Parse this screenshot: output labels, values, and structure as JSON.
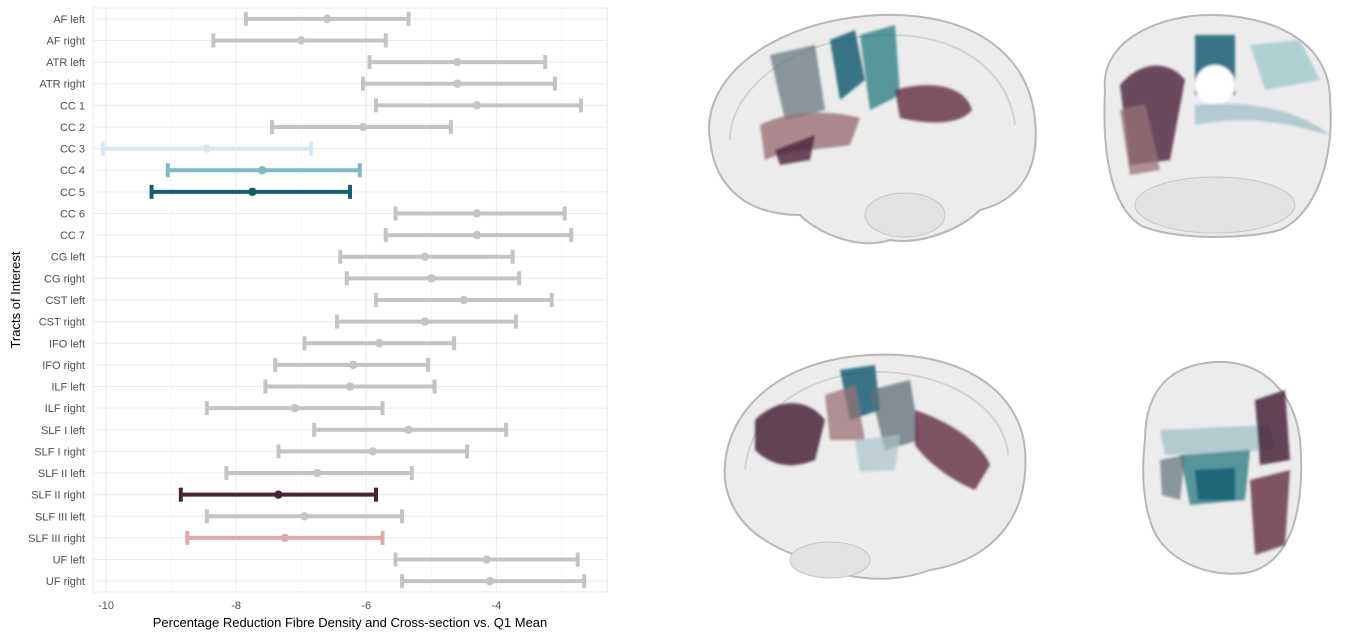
{
  "chart_data": {
    "type": "errorbar",
    "xlabel": "Percentage Reduction Fibre Density and Cross-section vs. Q1 Mean",
    "ylabel": "Tracts of Interest",
    "xlim": [
      -10.2,
      -2.3
    ],
    "xticks": [
      -10,
      -8,
      -6,
      -4
    ],
    "grid": true,
    "default_color": "#c4c4c4",
    "rows": [
      {
        "label": "AF left",
        "mean": -6.6,
        "lo": -7.85,
        "hi": -5.35,
        "color": "#c4c4c4"
      },
      {
        "label": "AF right",
        "mean": -7.0,
        "lo": -8.35,
        "hi": -5.7,
        "color": "#c4c4c4"
      },
      {
        "label": "ATR left",
        "mean": -4.6,
        "lo": -5.95,
        "hi": -3.25,
        "color": "#c4c4c4"
      },
      {
        "label": "ATR right",
        "mean": -4.6,
        "lo": -6.05,
        "hi": -3.1,
        "color": "#c4c4c4"
      },
      {
        "label": "CC 1",
        "mean": -4.3,
        "lo": -5.85,
        "hi": -2.7,
        "color": "#c4c4c4"
      },
      {
        "label": "CC 2",
        "mean": -6.05,
        "lo": -7.45,
        "hi": -4.7,
        "color": "#c4c4c4"
      },
      {
        "label": "CC 3",
        "mean": -8.45,
        "lo": -10.05,
        "hi": -6.85,
        "color": "#d6e8f6"
      },
      {
        "label": "CC 4",
        "mean": -7.6,
        "lo": -9.05,
        "hi": -6.1,
        "color": "#7fb9c0"
      },
      {
        "label": "CC 5",
        "mean": -7.75,
        "lo": -9.3,
        "hi": -6.25,
        "color": "#145f73"
      },
      {
        "label": "CC 6",
        "mean": -4.3,
        "lo": -5.55,
        "hi": -2.95,
        "color": "#c4c4c4"
      },
      {
        "label": "CC 7",
        "mean": -4.3,
        "lo": -5.7,
        "hi": -2.85,
        "color": "#c4c4c4"
      },
      {
        "label": "CG left",
        "mean": -5.1,
        "lo": -6.4,
        "hi": -3.75,
        "color": "#c4c4c4"
      },
      {
        "label": "CG right",
        "mean": -5.0,
        "lo": -6.3,
        "hi": -3.65,
        "color": "#c4c4c4"
      },
      {
        "label": "CST left",
        "mean": -4.5,
        "lo": -5.85,
        "hi": -3.15,
        "color": "#c4c4c4"
      },
      {
        "label": "CST right",
        "mean": -5.1,
        "lo": -6.45,
        "hi": -3.7,
        "color": "#c4c4c4"
      },
      {
        "label": "IFO left",
        "mean": -5.8,
        "lo": -6.95,
        "hi": -4.65,
        "color": "#c4c4c4"
      },
      {
        "label": "IFO right",
        "mean": -6.2,
        "lo": -7.4,
        "hi": -5.05,
        "color": "#c4c4c4"
      },
      {
        "label": "ILF left",
        "mean": -6.25,
        "lo": -7.55,
        "hi": -4.95,
        "color": "#c4c4c4"
      },
      {
        "label": "ILF right",
        "mean": -7.1,
        "lo": -8.45,
        "hi": -5.75,
        "color": "#c4c4c4"
      },
      {
        "label": "SLF I left",
        "mean": -5.35,
        "lo": -6.8,
        "hi": -3.85,
        "color": "#c4c4c4"
      },
      {
        "label": "SLF I right",
        "mean": -5.9,
        "lo": -7.35,
        "hi": -4.45,
        "color": "#c4c4c4"
      },
      {
        "label": "SLF II left",
        "mean": -6.75,
        "lo": -8.15,
        "hi": -5.3,
        "color": "#c4c4c4"
      },
      {
        "label": "SLF II right",
        "mean": -7.35,
        "lo": -8.85,
        "hi": -5.85,
        "color": "#4a2338"
      },
      {
        "label": "SLF III left",
        "mean": -6.95,
        "lo": -8.45,
        "hi": -5.45,
        "color": "#c4c4c4"
      },
      {
        "label": "SLF III right",
        "mean": -7.25,
        "lo": -8.75,
        "hi": -5.75,
        "color": "#e0aaaa"
      },
      {
        "label": "UF left",
        "mean": -4.15,
        "lo": -5.55,
        "hi": -2.75,
        "color": "#c4c4c4"
      },
      {
        "label": "UF right",
        "mean": -4.1,
        "lo": -5.45,
        "hi": -2.65,
        "color": "#c4c4c4"
      }
    ]
  },
  "brain_views": {
    "tract_colors": [
      "#145f73",
      "#2f7f86",
      "#7fb9c0",
      "#4a2338",
      "#6b3a4d",
      "#9a7075",
      "#5e6f78",
      "#a9c4cc"
    ]
  }
}
